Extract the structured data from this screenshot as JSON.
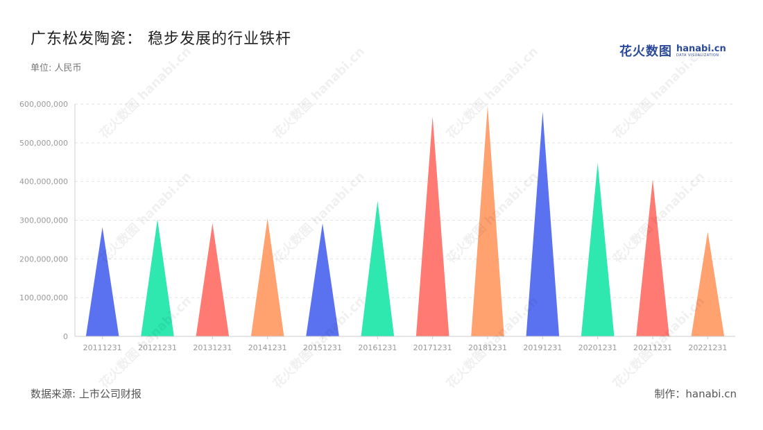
{
  "header": {
    "title": "广东松发陶瓷： 稳步发展的行业铁杆",
    "unit": "单位: 人民币"
  },
  "logo": {
    "cn": "花火数图",
    "en": "hanabi.cn",
    "sub": "DATA VISUALIZATION"
  },
  "footer": {
    "source": "数据来源: 上市公司财报",
    "maker": "制作：hanabi.cn"
  },
  "colors": {
    "palette": [
      "#5b72f0",
      "#2ee8b0",
      "#ff7a72",
      "#ffa270"
    ],
    "grid": "#e2e2e2",
    "axis": "#cccccc"
  },
  "chart_data": {
    "type": "bar",
    "bar_shape": "triangle",
    "categories": [
      "20111231",
      "20121231",
      "20131231",
      "20141231",
      "20151231",
      "20161231",
      "20171231",
      "20181231",
      "20191231",
      "20201231",
      "20211231",
      "20221231"
    ],
    "values": [
      282000000,
      302000000,
      292000000,
      305000000,
      292000000,
      350000000,
      568000000,
      595000000,
      580000000,
      448000000,
      405000000,
      270000000
    ],
    "yticks": [
      "0",
      "100,000,000",
      "200,000,000",
      "300,000,000",
      "400,000,000",
      "500,000,000",
      "600,000,000"
    ],
    "ylim": [
      0,
      600000000
    ],
    "grid": true,
    "legend": "none"
  }
}
